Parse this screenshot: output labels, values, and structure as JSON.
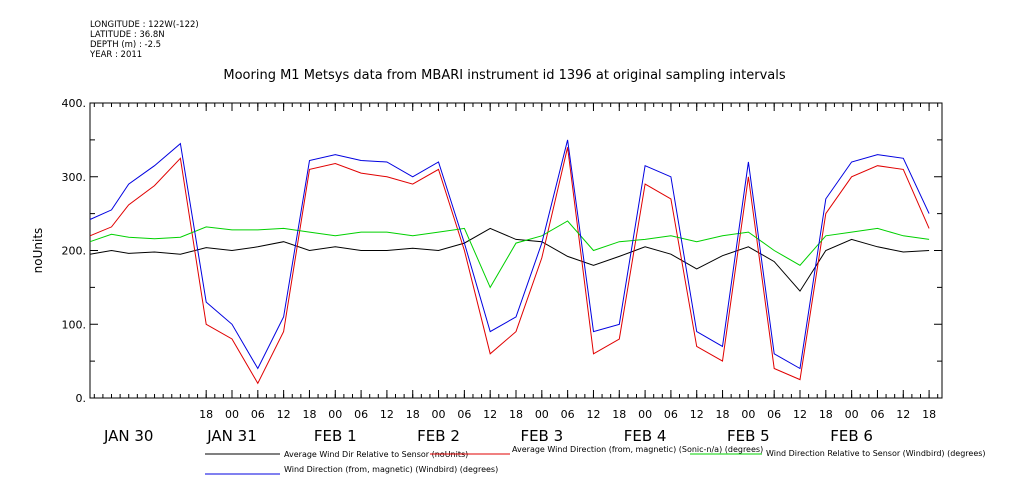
{
  "header": {
    "longitude": "LONGITUDE : 122W(-122)",
    "latitude": "LATITUDE : 36.8N",
    "depth": "DEPTH (m) : -2.5",
    "year": "YEAR : 2011"
  },
  "chart_data": {
    "type": "line",
    "title": "Mooring M1 Metsys data from MBARI instrument id 1396 at original sampling intervals",
    "ylabel": "noUnits",
    "xlabel": "",
    "ylim": [
      0,
      400
    ],
    "xlim_hours": [
      -9,
      189
    ],
    "y_ticks": [
      "0.",
      "100.",
      "200.",
      "300.",
      "400."
    ],
    "y_tick_values": [
      0,
      100,
      200,
      300,
      400
    ],
    "x_hour_ticks": [
      {
        "h": 18,
        "label": "18"
      },
      {
        "h": 24,
        "label": "00"
      },
      {
        "h": 30,
        "label": "06"
      },
      {
        "h": 36,
        "label": "12"
      },
      {
        "h": 42,
        "label": "18"
      },
      {
        "h": 48,
        "label": "00"
      },
      {
        "h": 54,
        "label": "06"
      },
      {
        "h": 60,
        "label": "12"
      },
      {
        "h": 66,
        "label": "18"
      },
      {
        "h": 72,
        "label": "00"
      },
      {
        "h": 78,
        "label": "06"
      },
      {
        "h": 84,
        "label": "12"
      },
      {
        "h": 90,
        "label": "18"
      },
      {
        "h": 96,
        "label": "00"
      },
      {
        "h": 102,
        "label": "06"
      },
      {
        "h": 108,
        "label": "12"
      },
      {
        "h": 114,
        "label": "18"
      },
      {
        "h": 120,
        "label": "00"
      },
      {
        "h": 126,
        "label": "06"
      },
      {
        "h": 132,
        "label": "12"
      },
      {
        "h": 138,
        "label": "18"
      },
      {
        "h": 144,
        "label": "00"
      },
      {
        "h": 150,
        "label": "06"
      },
      {
        "h": 156,
        "label": "12"
      },
      {
        "h": 162,
        "label": "18"
      },
      {
        "h": 168,
        "label": "00"
      },
      {
        "h": 174,
        "label": "06"
      },
      {
        "h": 180,
        "label": "12"
      },
      {
        "h": 186,
        "label": "18"
      }
    ],
    "x_day_labels": [
      {
        "h": 0,
        "label": "JAN 30"
      },
      {
        "h": 24,
        "label": "JAN 31"
      },
      {
        "h": 48,
        "label": "FEB  1"
      },
      {
        "h": 72,
        "label": "FEB  2"
      },
      {
        "h": 96,
        "label": "FEB  3"
      },
      {
        "h": 120,
        "label": "FEB  4"
      },
      {
        "h": 144,
        "label": "FEB  5"
      },
      {
        "h": 168,
        "label": "FEB  6"
      }
    ],
    "series": [
      {
        "name": "Average Wind Dir Relative to Sensor (noUnits)",
        "color": "#000000",
        "points": [
          [
            -9,
            195
          ],
          [
            -4,
            200
          ],
          [
            0,
            196
          ],
          [
            6,
            198
          ],
          [
            12,
            195
          ],
          [
            18,
            204
          ],
          [
            24,
            200
          ],
          [
            30,
            205
          ],
          [
            36,
            212
          ],
          [
            42,
            200
          ],
          [
            48,
            205
          ],
          [
            54,
            200
          ],
          [
            60,
            200
          ],
          [
            66,
            203
          ],
          [
            72,
            200
          ],
          [
            78,
            210
          ],
          [
            84,
            230
          ],
          [
            90,
            215
          ],
          [
            96,
            212
          ],
          [
            102,
            192
          ],
          [
            108,
            180
          ],
          [
            114,
            192
          ],
          [
            120,
            205
          ],
          [
            126,
            195
          ],
          [
            132,
            175
          ],
          [
            138,
            193
          ],
          [
            144,
            205
          ],
          [
            150,
            185
          ],
          [
            156,
            145
          ],
          [
            162,
            200
          ],
          [
            168,
            215
          ],
          [
            174,
            205
          ],
          [
            180,
            198
          ],
          [
            186,
            200
          ]
        ]
      },
      {
        "name": "Average Wind Direction (from, magnetic) (Sonic-n/a) (degrees)",
        "color": "#e00000",
        "points": [
          [
            -9,
            220
          ],
          [
            -4,
            232
          ],
          [
            0,
            262
          ],
          [
            6,
            288
          ],
          [
            12,
            325
          ],
          [
            18,
            100
          ],
          [
            24,
            80
          ],
          [
            30,
            20
          ],
          [
            36,
            90
          ],
          [
            42,
            310
          ],
          [
            48,
            318
          ],
          [
            54,
            305
          ],
          [
            60,
            300
          ],
          [
            66,
            290
          ],
          [
            72,
            310
          ],
          [
            78,
            200
          ],
          [
            84,
            60
          ],
          [
            90,
            90
          ],
          [
            96,
            190
          ],
          [
            102,
            340
          ],
          [
            108,
            60
          ],
          [
            114,
            80
          ],
          [
            120,
            290
          ],
          [
            126,
            270
          ],
          [
            132,
            70
          ],
          [
            138,
            50
          ],
          [
            144,
            300
          ],
          [
            150,
            40
          ],
          [
            156,
            25
          ],
          [
            162,
            250
          ],
          [
            168,
            300
          ],
          [
            174,
            315
          ],
          [
            180,
            310
          ],
          [
            186,
            230
          ]
        ]
      },
      {
        "name": "Wind Direction Relative to Sensor (Windbird) (degrees)",
        "color": "#00d000",
        "points": [
          [
            -9,
            212
          ],
          [
            -4,
            222
          ],
          [
            0,
            218
          ],
          [
            6,
            216
          ],
          [
            12,
            218
          ],
          [
            18,
            232
          ],
          [
            24,
            228
          ],
          [
            30,
            228
          ],
          [
            36,
            230
          ],
          [
            42,
            225
          ],
          [
            48,
            220
          ],
          [
            54,
            225
          ],
          [
            60,
            225
          ],
          [
            66,
            220
          ],
          [
            72,
            225
          ],
          [
            78,
            230
          ],
          [
            84,
            150
          ],
          [
            90,
            210
          ],
          [
            96,
            220
          ],
          [
            102,
            240
          ],
          [
            108,
            200
          ],
          [
            114,
            212
          ],
          [
            120,
            215
          ],
          [
            126,
            220
          ],
          [
            132,
            212
          ],
          [
            138,
            220
          ],
          [
            144,
            225
          ],
          [
            150,
            200
          ],
          [
            156,
            180
          ],
          [
            162,
            220
          ],
          [
            168,
            225
          ],
          [
            174,
            230
          ],
          [
            180,
            220
          ],
          [
            186,
            215
          ]
        ]
      },
      {
        "name": "Wind Direction (from, magnetic) (Windbird) (degrees)",
        "color": "#0000e0",
        "points": [
          [
            -9,
            242
          ],
          [
            -4,
            255
          ],
          [
            0,
            290
          ],
          [
            6,
            315
          ],
          [
            12,
            345
          ],
          [
            18,
            130
          ],
          [
            24,
            100
          ],
          [
            30,
            40
          ],
          [
            36,
            110
          ],
          [
            42,
            322
          ],
          [
            48,
            330
          ],
          [
            54,
            322
          ],
          [
            60,
            320
          ],
          [
            66,
            300
          ],
          [
            72,
            320
          ],
          [
            78,
            210
          ],
          [
            84,
            90
          ],
          [
            90,
            110
          ],
          [
            96,
            210
          ],
          [
            102,
            350
          ],
          [
            108,
            90
          ],
          [
            114,
            100
          ],
          [
            120,
            315
          ],
          [
            126,
            300
          ],
          [
            132,
            90
          ],
          [
            138,
            70
          ],
          [
            144,
            320
          ],
          [
            150,
            60
          ],
          [
            156,
            40
          ],
          [
            162,
            270
          ],
          [
            168,
            320
          ],
          [
            174,
            330
          ],
          [
            180,
            325
          ],
          [
            186,
            250
          ]
        ]
      }
    ]
  }
}
